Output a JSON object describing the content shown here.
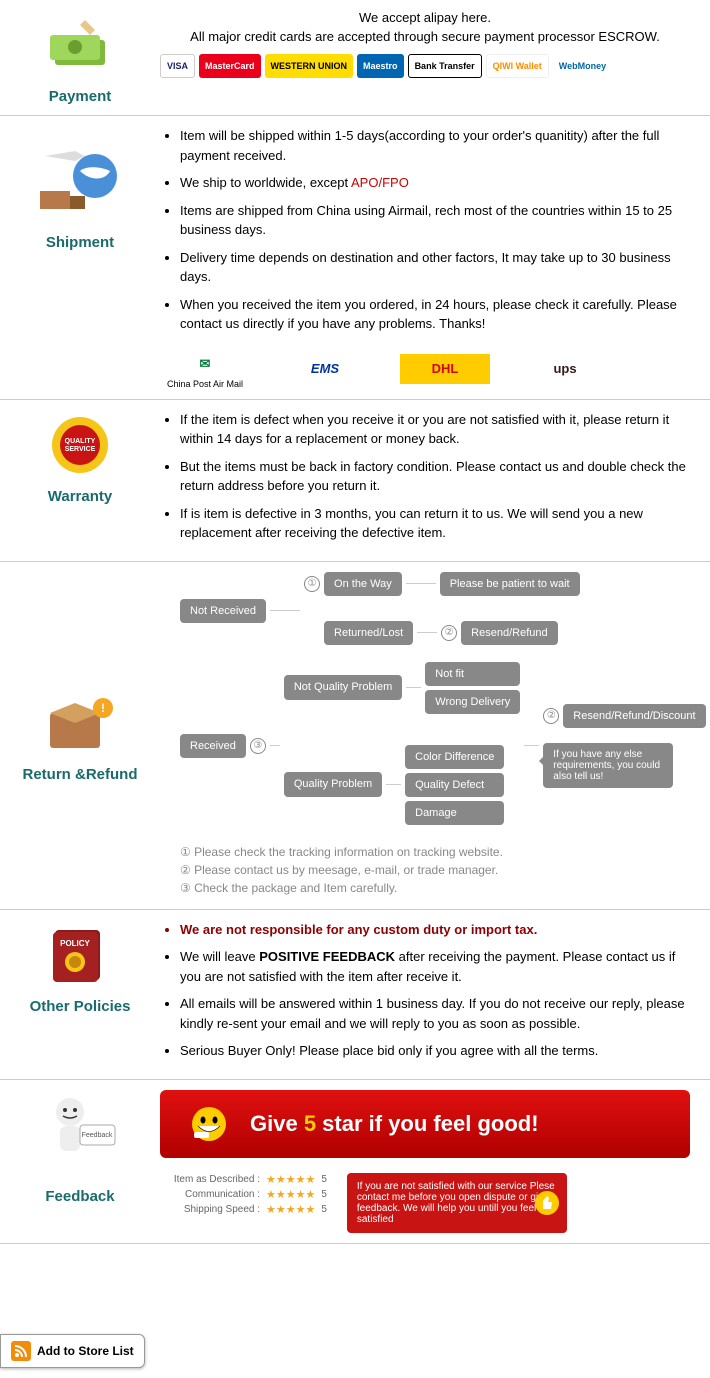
{
  "payment": {
    "title": "Payment",
    "line1": "We accept alipay here.",
    "line2": "All major credit cards are accepted through secure payment processor ESCROW.",
    "logos": [
      {
        "label": "VISA",
        "bg": "#fff",
        "fg": "#1a1f71",
        "border": "1px solid #ccc"
      },
      {
        "label": "MasterCard",
        "bg": "#eb001b",
        "fg": "#fff"
      },
      {
        "label": "WESTERN UNION",
        "bg": "#ffdd00",
        "fg": "#000"
      },
      {
        "label": "Maestro",
        "bg": "#0066b2",
        "fg": "#fff"
      },
      {
        "label": "Bank Transfer",
        "bg": "#fff",
        "fg": "#000",
        "border": "1px solid #000"
      },
      {
        "label": "QIWI Wallet",
        "bg": "#fff",
        "fg": "#ff8c00",
        "border": "1px solid #eee"
      },
      {
        "label": "WebMoney",
        "bg": "#fff",
        "fg": "#0068a5"
      }
    ]
  },
  "shipment": {
    "title": "Shipment",
    "items": [
      {
        "text": "Item will be shipped within 1-5 days(according to your order's quanitity) after the full payment received."
      },
      {
        "text": "We ship to worldwide, except ",
        "highlight": "APO/FPO"
      },
      {
        "text": "Items are shipped from China using Airmail, rech most of the countries within 15 to 25 business days."
      },
      {
        "text": "Delivery time depends on destination and other factors, It may take up to 30 business days."
      },
      {
        "text": "When you received the item you ordered, in 24 hours, please check it carefully. Please contact us directly if you have any problems. Thanks!"
      }
    ],
    "carriers": [
      {
        "label": "China Post Air Mail",
        "color": "#0b7d3e"
      },
      {
        "label": "EMS",
        "color": "#0033a0"
      },
      {
        "label": "DHL EXPRESS",
        "color": "#ffcc00"
      },
      {
        "label": "ups",
        "color": "#351c15"
      }
    ]
  },
  "warranty": {
    "title": "Warranty",
    "items": [
      "If the item is defect when you receive it or you are not satisfied with it, please return it within 14 days for a replacement or money back.",
      "But the items must be back in factory condition. Please contact us and double check the return address before you return it.",
      "If is item is defective in 3 months, you can return it to us. We will send you a new replacement after receiving the defective item."
    ]
  },
  "returnRefund": {
    "title": "Return &Refund",
    "flow": {
      "notReceived": "Not Received",
      "onTheWay": "On the Way",
      "patient": "Please be patient to wait",
      "returnedLost": "Returned/Lost",
      "resendRefund": "Resend/Refund",
      "received": "Received",
      "notQuality": "Not Quality Problem",
      "quality": "Quality Problem",
      "notFit": "Not fit",
      "wrongDelivery": "Wrong Delivery",
      "colorDiff": "Color Difference",
      "qualityDefect": "Quality Defect",
      "damage": "Damage",
      "resendRefundDiscount": "Resend/Refund/Discount",
      "anyElse": "If you have any else requirements, you could also tell us!"
    },
    "notes": [
      "① Please check the tracking information on tracking website.",
      "② Please contact us by meesage, e-mail, or trade manager.",
      "③ Check the package and Item carefully."
    ]
  },
  "otherPolicies": {
    "title": "Other Policies",
    "headline": "We are not responsible for any custom duty or import tax.",
    "items": [
      {
        "pre": "We will leave ",
        "bold": "POSITIVE FEEDBACK",
        "post": " after receiving the payment. Please contact us if you are not satisfied with the item after receive it."
      },
      {
        "pre": "All emails will be answered within 1 business day. If you do not receive our reply, please kindly re-sent your email and we will reply to you as soon as possible."
      },
      {
        "pre": "Serious Buyer Only! Please place bid only if you agree with all the terms."
      }
    ]
  },
  "feedback": {
    "title": "Feedback",
    "bannerPre": "Give ",
    "bannerNum": "5",
    "bannerPost": " star if you feel good!",
    "ratings": [
      {
        "label": "Item as Described :",
        "score": "5"
      },
      {
        "label": "Communication :",
        "score": "5"
      },
      {
        "label": "Shipping Speed :",
        "score": "5"
      }
    ],
    "noteBox": "If you are not satisfied with our service Plese contact me before you open dispute or give feedback. We will help you untill you feel satisfied"
  },
  "addToStore": "Add to Store List"
}
